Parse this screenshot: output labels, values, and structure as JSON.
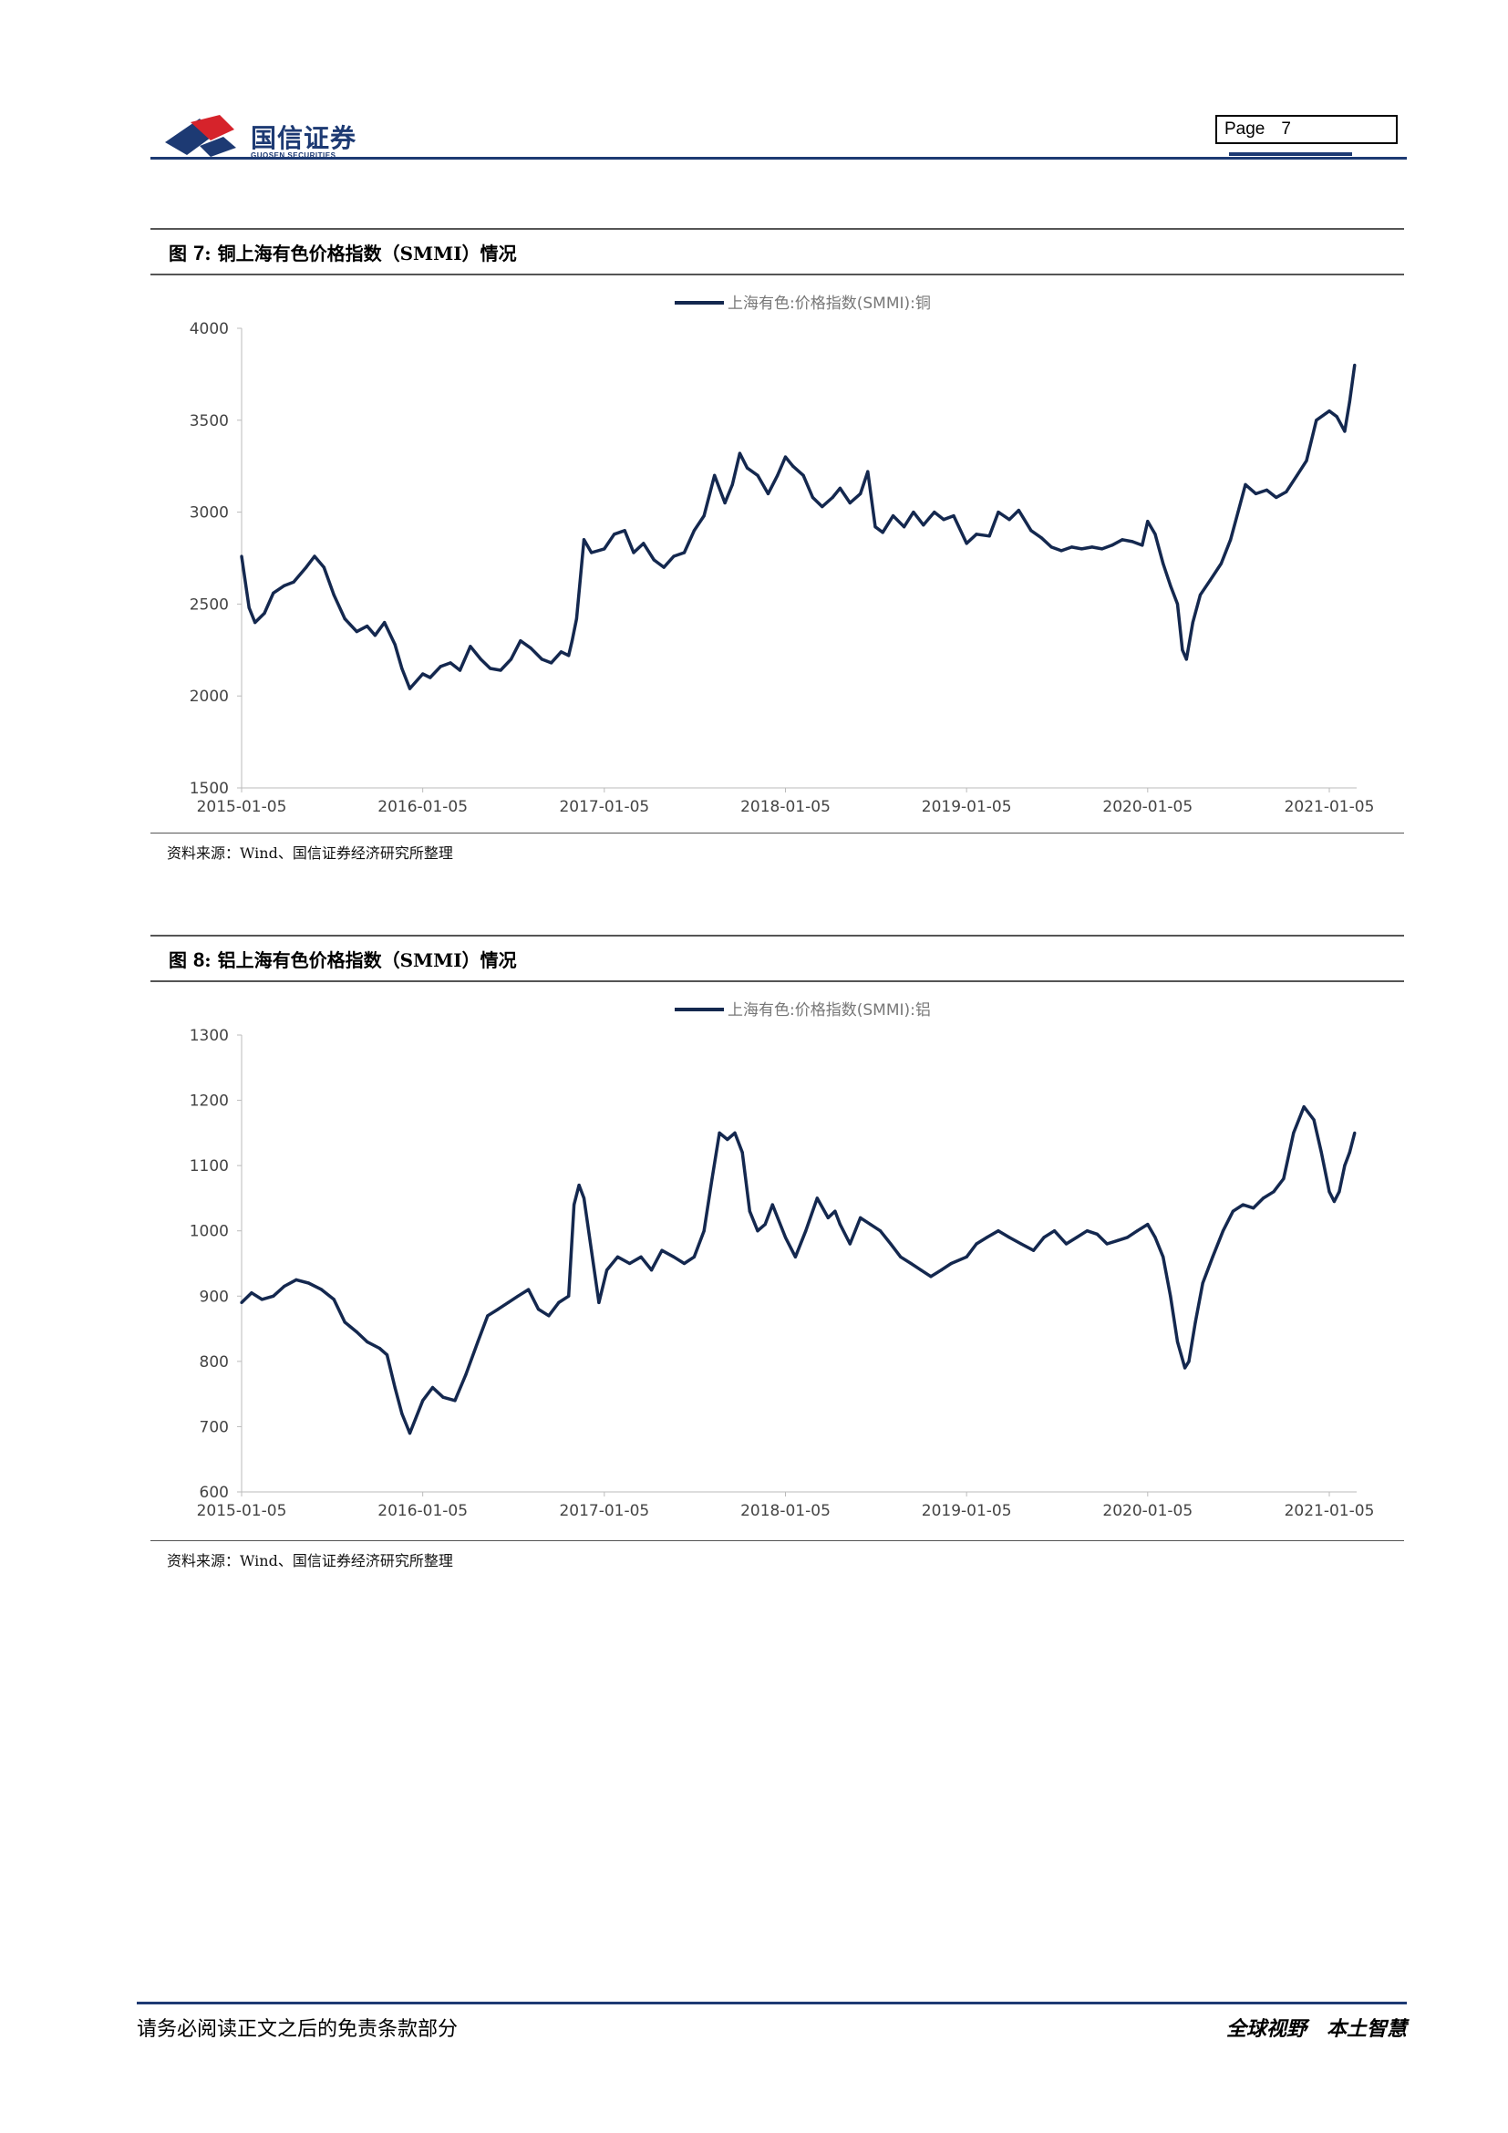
{
  "header": {
    "company_cn": "国信证券",
    "company_en": "GUOSEN SECURITIES",
    "page_label": "Page",
    "page_number": "7",
    "brand_color": "#1d3a73",
    "logo_red": "#d6232b"
  },
  "figures": [
    {
      "title_prefix": "图",
      "title_num": "7",
      "title_text": "铜上海有色价格指数（SMMI）情况",
      "source": "资料来源：Wind、国信证券经济研究所整理"
    },
    {
      "title_prefix": "图",
      "title_num": "8",
      "title_text": "铝上海有色价格指数（SMMI）情况",
      "source": "资料来源：Wind、国信证券经济研究所整理"
    }
  ],
  "chart_data": [
    {
      "type": "line",
      "title": "",
      "legend": "上海有色:价格指数(SMMI):铜",
      "legend_position": "top-center",
      "line_color": "#14284f",
      "grid": false,
      "x_ticks": [
        "2015-01-05",
        "2016-01-05",
        "2017-01-05",
        "2018-01-05",
        "2019-01-05",
        "2020-01-05",
        "2021-01-05"
      ],
      "x_range": [
        "2015-01-05",
        "2021-02-25"
      ],
      "ylim": [
        1500,
        4000
      ],
      "y_ticks": [
        1500,
        2000,
        2500,
        3000,
        3500,
        4000
      ],
      "series": [
        {
          "name": "上海有色:价格指数(SMMI):铜",
          "x": [
            "2015-01-05",
            "2015-01-20",
            "2015-02-01",
            "2015-02-20",
            "2015-03-10",
            "2015-04-01",
            "2015-04-20",
            "2015-05-15",
            "2015-06-01",
            "2015-06-20",
            "2015-07-10",
            "2015-08-01",
            "2015-08-25",
            "2015-09-15",
            "2015-10-01",
            "2015-10-20",
            "2015-11-10",
            "2015-11-24",
            "2015-12-10",
            "2016-01-05",
            "2016-01-20",
            "2016-02-10",
            "2016-03-01",
            "2016-03-20",
            "2016-04-10",
            "2016-05-01",
            "2016-05-20",
            "2016-06-10",
            "2016-07-01",
            "2016-07-20",
            "2016-08-10",
            "2016-09-01",
            "2016-09-20",
            "2016-10-10",
            "2016-10-25",
            "2016-11-01",
            "2016-11-10",
            "2016-11-25",
            "2016-12-10",
            "2017-01-05",
            "2017-01-25",
            "2017-02-15",
            "2017-03-05",
            "2017-03-25",
            "2017-04-15",
            "2017-05-05",
            "2017-05-25",
            "2017-06-15",
            "2017-07-05",
            "2017-07-25",
            "2017-08-15",
            "2017-09-05",
            "2017-09-20",
            "2017-10-05",
            "2017-10-20",
            "2017-11-10",
            "2017-12-01",
            "2017-12-20",
            "2018-01-05",
            "2018-01-20",
            "2018-02-10",
            "2018-03-01",
            "2018-03-20",
            "2018-04-10",
            "2018-04-25",
            "2018-05-15",
            "2018-06-05",
            "2018-06-20",
            "2018-07-05",
            "2018-07-20",
            "2018-08-10",
            "2018-09-01",
            "2018-09-20",
            "2018-10-10",
            "2018-11-01",
            "2018-11-20",
            "2018-12-10",
            "2019-01-05",
            "2019-01-25",
            "2019-02-20",
            "2019-03-10",
            "2019-04-01",
            "2019-04-20",
            "2019-05-15",
            "2019-06-05",
            "2019-06-25",
            "2019-07-15",
            "2019-08-05",
            "2019-08-25",
            "2019-09-15",
            "2019-10-05",
            "2019-10-25",
            "2019-11-15",
            "2019-12-05",
            "2019-12-25",
            "2020-01-05",
            "2020-01-20",
            "2020-02-05",
            "2020-02-20",
            "2020-03-05",
            "2020-03-15",
            "2020-03-23",
            "2020-04-05",
            "2020-04-20",
            "2020-05-10",
            "2020-06-01",
            "2020-06-20",
            "2020-07-05",
            "2020-07-20",
            "2020-08-10",
            "2020-09-01",
            "2020-09-20",
            "2020-10-10",
            "2020-11-01",
            "2020-11-20",
            "2020-12-10",
            "2021-01-05",
            "2021-01-20",
            "2021-02-05",
            "2021-02-15",
            "2021-02-25"
          ],
          "values": [
            2760,
            2480,
            2400,
            2450,
            2560,
            2600,
            2620,
            2700,
            2760,
            2700,
            2550,
            2420,
            2350,
            2380,
            2330,
            2400,
            2280,
            2150,
            2040,
            2120,
            2100,
            2160,
            2180,
            2140,
            2270,
            2200,
            2150,
            2140,
            2200,
            2300,
            2260,
            2200,
            2180,
            2240,
            2220,
            2300,
            2420,
            2850,
            2780,
            2800,
            2880,
            2900,
            2780,
            2830,
            2740,
            2700,
            2760,
            2780,
            2900,
            2980,
            3200,
            3050,
            3150,
            3320,
            3240,
            3200,
            3100,
            3200,
            3300,
            3250,
            3200,
            3080,
            3030,
            3080,
            3130,
            3050,
            3100,
            3220,
            2920,
            2890,
            2980,
            2920,
            3000,
            2930,
            3000,
            2960,
            2980,
            2830,
            2880,
            2870,
            3000,
            2960,
            3010,
            2900,
            2860,
            2810,
            2790,
            2810,
            2800,
            2810,
            2800,
            2820,
            2850,
            2840,
            2820,
            2950,
            2880,
            2720,
            2600,
            2500,
            2250,
            2200,
            2400,
            2550,
            2630,
            2720,
            2850,
            3000,
            3150,
            3100,
            3120,
            3080,
            3110,
            3200,
            3280,
            3500,
            3550,
            3520,
            3440,
            3600,
            3800
          ]
        }
      ]
    },
    {
      "type": "line",
      "title": "",
      "legend": "上海有色:价格指数(SMMI):铝",
      "legend_position": "top-center",
      "line_color": "#14284f",
      "grid": false,
      "x_ticks": [
        "2015-01-05",
        "2016-01-05",
        "2017-01-05",
        "2018-01-05",
        "2019-01-05",
        "2020-01-05",
        "2021-01-05"
      ],
      "x_range": [
        "2015-01-05",
        "2021-02-25"
      ],
      "ylim": [
        600,
        1300
      ],
      "y_ticks": [
        600,
        700,
        800,
        900,
        1000,
        1100,
        1200,
        1300
      ],
      "series": [
        {
          "name": "上海有色:价格指数(SMMI):铝",
          "x": [
            "2015-01-05",
            "2015-01-25",
            "2015-02-15",
            "2015-03-10",
            "2015-04-01",
            "2015-04-25",
            "2015-05-20",
            "2015-06-15",
            "2015-07-10",
            "2015-08-01",
            "2015-08-25",
            "2015-09-15",
            "2015-10-10",
            "2015-10-25",
            "2015-11-10",
            "2015-11-24",
            "2015-12-10",
            "2016-01-05",
            "2016-01-25",
            "2016-02-15",
            "2016-03-10",
            "2016-04-01",
            "2016-04-25",
            "2016-05-15",
            "2016-06-05",
            "2016-06-25",
            "2016-07-15",
            "2016-08-05",
            "2016-08-25",
            "2016-09-15",
            "2016-10-05",
            "2016-10-25",
            "2016-11-05",
            "2016-11-15",
            "2016-11-25",
            "2016-12-10",
            "2016-12-25",
            "2017-01-10",
            "2017-02-01",
            "2017-02-25",
            "2017-03-20",
            "2017-04-10",
            "2017-05-01",
            "2017-05-25",
            "2017-06-15",
            "2017-07-05",
            "2017-07-25",
            "2017-08-10",
            "2017-08-25",
            "2017-09-10",
            "2017-09-25",
            "2017-10-10",
            "2017-10-25",
            "2017-11-10",
            "2017-11-25",
            "2017-12-10",
            "2018-01-05",
            "2018-01-25",
            "2018-02-15",
            "2018-03-10",
            "2018-04-01",
            "2018-04-15",
            "2018-04-25",
            "2018-05-15",
            "2018-06-05",
            "2018-06-25",
            "2018-07-15",
            "2018-08-05",
            "2018-08-25",
            "2018-09-15",
            "2018-10-05",
            "2018-10-25",
            "2018-11-15",
            "2018-12-05",
            "2019-01-05",
            "2019-01-25",
            "2019-02-15",
            "2019-03-10",
            "2019-04-01",
            "2019-04-25",
            "2019-05-20",
            "2019-06-10",
            "2019-07-01",
            "2019-07-25",
            "2019-08-15",
            "2019-09-05",
            "2019-09-25",
            "2019-10-15",
            "2019-11-05",
            "2019-11-25",
            "2019-12-15",
            "2020-01-05",
            "2020-01-20",
            "2020-02-05",
            "2020-02-20",
            "2020-03-05",
            "2020-03-20",
            "2020-03-28",
            "2020-04-10",
            "2020-04-25",
            "2020-05-15",
            "2020-06-05",
            "2020-06-25",
            "2020-07-15",
            "2020-08-05",
            "2020-08-25",
            "2020-09-15",
            "2020-10-05",
            "2020-10-25",
            "2020-11-15",
            "2020-12-05",
            "2020-12-20",
            "2021-01-05",
            "2021-01-15",
            "2021-01-25",
            "2021-02-05",
            "2021-02-15",
            "2021-02-25"
          ],
          "values": [
            890,
            905,
            895,
            900,
            915,
            925,
            920,
            910,
            895,
            860,
            845,
            830,
            820,
            810,
            760,
            720,
            690,
            740,
            760,
            745,
            740,
            780,
            830,
            870,
            880,
            890,
            900,
            910,
            880,
            870,
            890,
            900,
            1040,
            1070,
            1050,
            970,
            890,
            940,
            960,
            950,
            960,
            940,
            970,
            960,
            950,
            960,
            1000,
            1080,
            1150,
            1140,
            1150,
            1120,
            1030,
            1000,
            1010,
            1040,
            990,
            960,
            1000,
            1050,
            1020,
            1030,
            1010,
            980,
            1020,
            1010,
            1000,
            980,
            960,
            950,
            940,
            930,
            940,
            950,
            960,
            980,
            990,
            1000,
            990,
            980,
            970,
            990,
            1000,
            980,
            990,
            1000,
            995,
            980,
            985,
            990,
            1000,
            1010,
            990,
            960,
            900,
            830,
            790,
            800,
            860,
            920,
            960,
            1000,
            1030,
            1040,
            1035,
            1050,
            1060,
            1080,
            1150,
            1190,
            1170,
            1120,
            1060,
            1045,
            1060,
            1100,
            1120,
            1150
          ]
        }
      ]
    }
  ],
  "footer": {
    "disclaimer": "请务必阅读正文之后的免责条款部分",
    "slogan_left": "全球视野",
    "slogan_right": "本土智慧"
  }
}
